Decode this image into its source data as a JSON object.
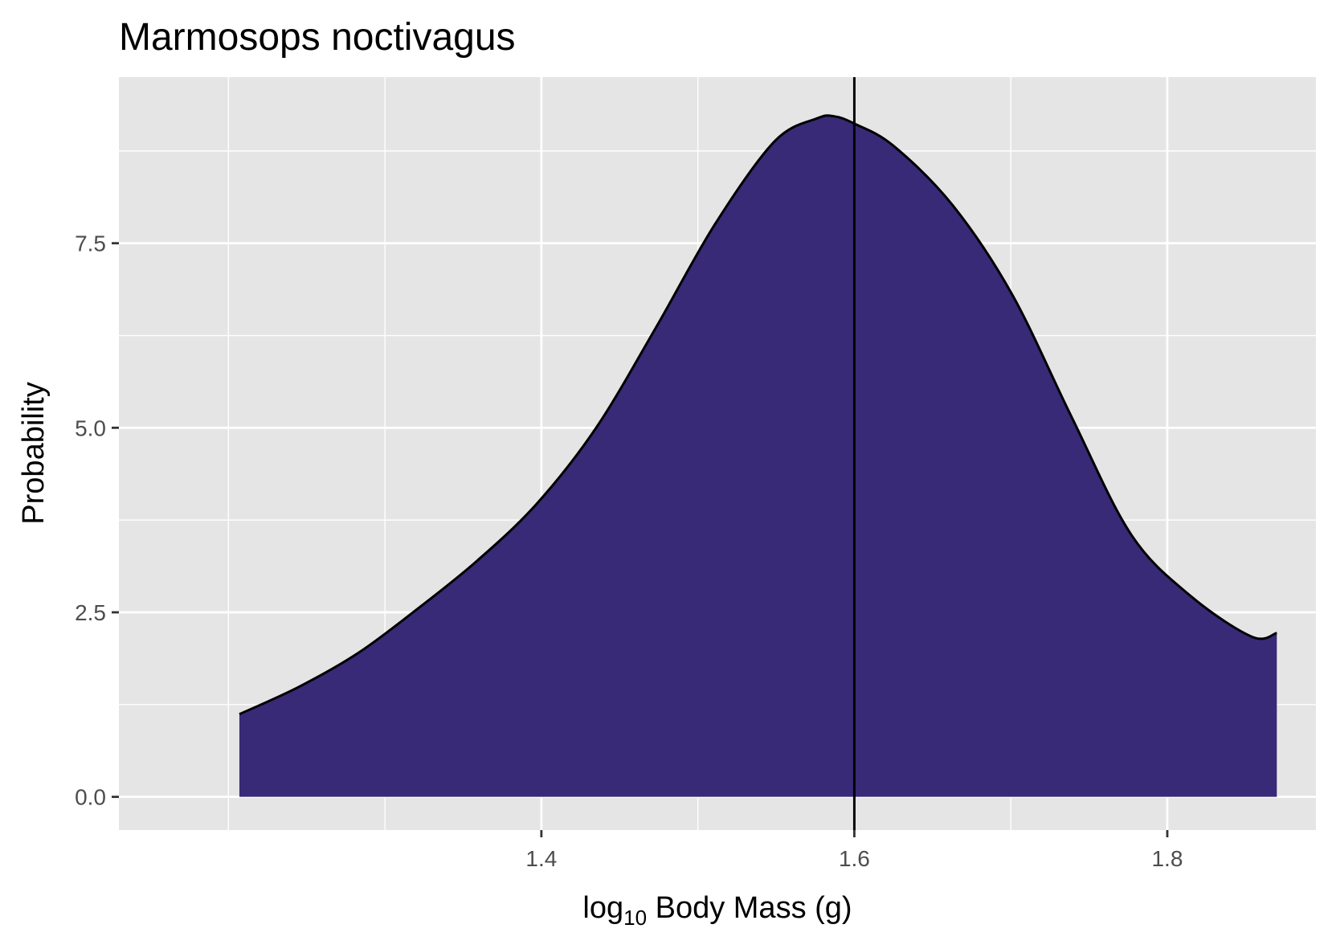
{
  "chart_data": {
    "type": "area",
    "title": "Marmosops noctivagus",
    "xlabel_main": "log",
    "xlabel_sub": "10",
    "xlabel_rest": " Body Mass (g)",
    "ylabel": "Probability",
    "xlim": [
      1.13,
      1.895
    ],
    "ylim": [
      -0.45,
      9.75
    ],
    "x_ticks": [
      1.4,
      1.6,
      1.8
    ],
    "x_tick_labels": [
      "1.4",
      "1.6",
      "1.8"
    ],
    "x_minor": [
      1.2,
      1.3,
      1.5,
      1.7
    ],
    "y_ticks": [
      0.0,
      2.5,
      5.0,
      7.5
    ],
    "y_tick_labels": [
      "0.0",
      "2.5",
      "5.0",
      "7.5"
    ],
    "y_minor": [
      1.25,
      3.75,
      6.25,
      8.75
    ],
    "grid": true,
    "series": [
      {
        "fill": "#382a77",
        "stroke": "#000000",
        "x": [
          1.207,
          1.245,
          1.283,
          1.321,
          1.359,
          1.397,
          1.435,
          1.473,
          1.511,
          1.549,
          1.576,
          1.587,
          1.6,
          1.625,
          1.663,
          1.701,
          1.739,
          1.777,
          1.815,
          1.854,
          1.87
        ],
        "y": [
          1.12,
          1.49,
          1.95,
          2.55,
          3.2,
          3.97,
          5.0,
          6.35,
          7.76,
          8.88,
          9.19,
          9.22,
          9.12,
          8.82,
          8.01,
          6.8,
          5.14,
          3.55,
          2.72,
          2.17,
          2.22
        ]
      }
    ],
    "vline_x": 1.6,
    "colors": {
      "panel_bg": "#e5e5e5",
      "grid": "#ffffff",
      "fill": "#382a77",
      "line": "#000000"
    }
  }
}
